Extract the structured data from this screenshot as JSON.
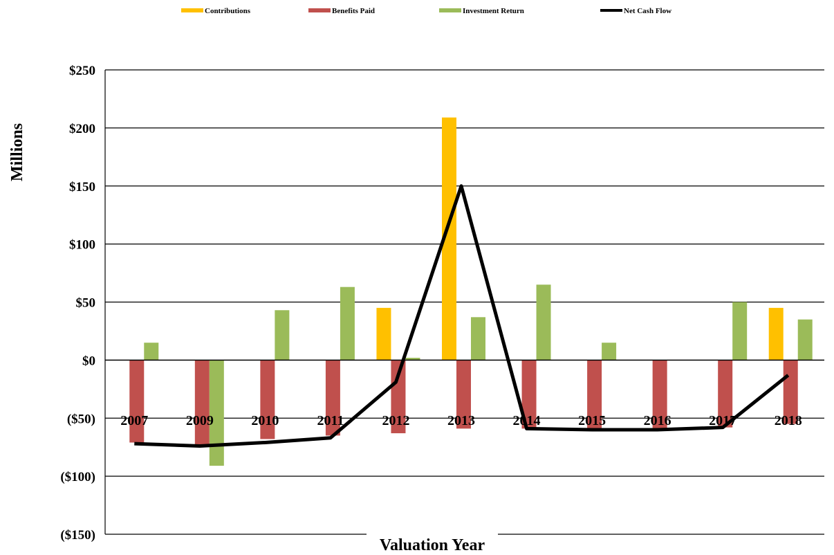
{
  "chart_data": {
    "type": "bar",
    "title": "",
    "xlabel": "Valuation Year",
    "ylabel": "Millions",
    "categories": [
      "2007",
      "2009",
      "2010",
      "2011",
      "2012",
      "2013",
      "2014",
      "2015",
      "2016",
      "2017",
      "2018"
    ],
    "series": [
      {
        "name": "Contributions",
        "type": "bar",
        "color": "#FFC000",
        "values": [
          0,
          0,
          0,
          0,
          45,
          209,
          0,
          0,
          0,
          0,
          45
        ]
      },
      {
        "name": "Benefits Paid",
        "type": "bar",
        "color": "#C0504D",
        "values": [
          -71,
          -73,
          -68,
          -65,
          -63,
          -59,
          -59,
          -60,
          -60,
          -58,
          -55
        ]
      },
      {
        "name": "Investment Return",
        "type": "bar",
        "color": "#9BBB59",
        "values": [
          15,
          -91,
          43,
          63,
          2,
          37,
          65,
          15,
          0,
          50,
          35
        ]
      },
      {
        "name": "Net Cash Flow",
        "type": "line",
        "color": "#000000",
        "values": [
          -72,
          -74,
          -71,
          -67,
          -19,
          150,
          -59,
          -60,
          -60,
          -58,
          -13
        ]
      }
    ],
    "ylim": [
      -150,
      250
    ],
    "yticks": [
      250,
      200,
      150,
      100,
      50,
      0,
      -50,
      -100,
      -150
    ],
    "ytick_labels": [
      "$250",
      "$200",
      "$150",
      "$100",
      "$50",
      "$0",
      "($50)",
      "($100)",
      "($150)"
    ],
    "grid": true,
    "legend_position": "top"
  }
}
